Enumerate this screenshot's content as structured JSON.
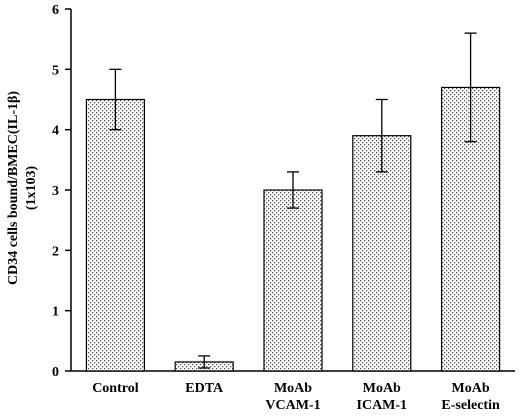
{
  "chart_data": {
    "type": "bar",
    "categories": [
      [
        "Control"
      ],
      [
        "EDTA"
      ],
      [
        "MoAb",
        "VCAM-1"
      ],
      [
        "MoAb",
        "ICAM-1"
      ],
      [
        "MoAb",
        "E-selectin"
      ]
    ],
    "values": [
      4.5,
      0.15,
      3.0,
      3.9,
      4.7
    ],
    "errors": [
      0.5,
      0.1,
      0.3,
      0.6,
      0.9
    ],
    "ylabel": [
      "CD34  cells  bound/BMEC(IL-1β)",
      "(1x103)"
    ],
    "ylim": [
      0,
      6
    ],
    "yticks": [
      "0",
      "1",
      "2",
      "3",
      "4",
      "5",
      "6"
    ],
    "bar_fill": "stippled gray dots",
    "grid": false,
    "legend": "none"
  }
}
